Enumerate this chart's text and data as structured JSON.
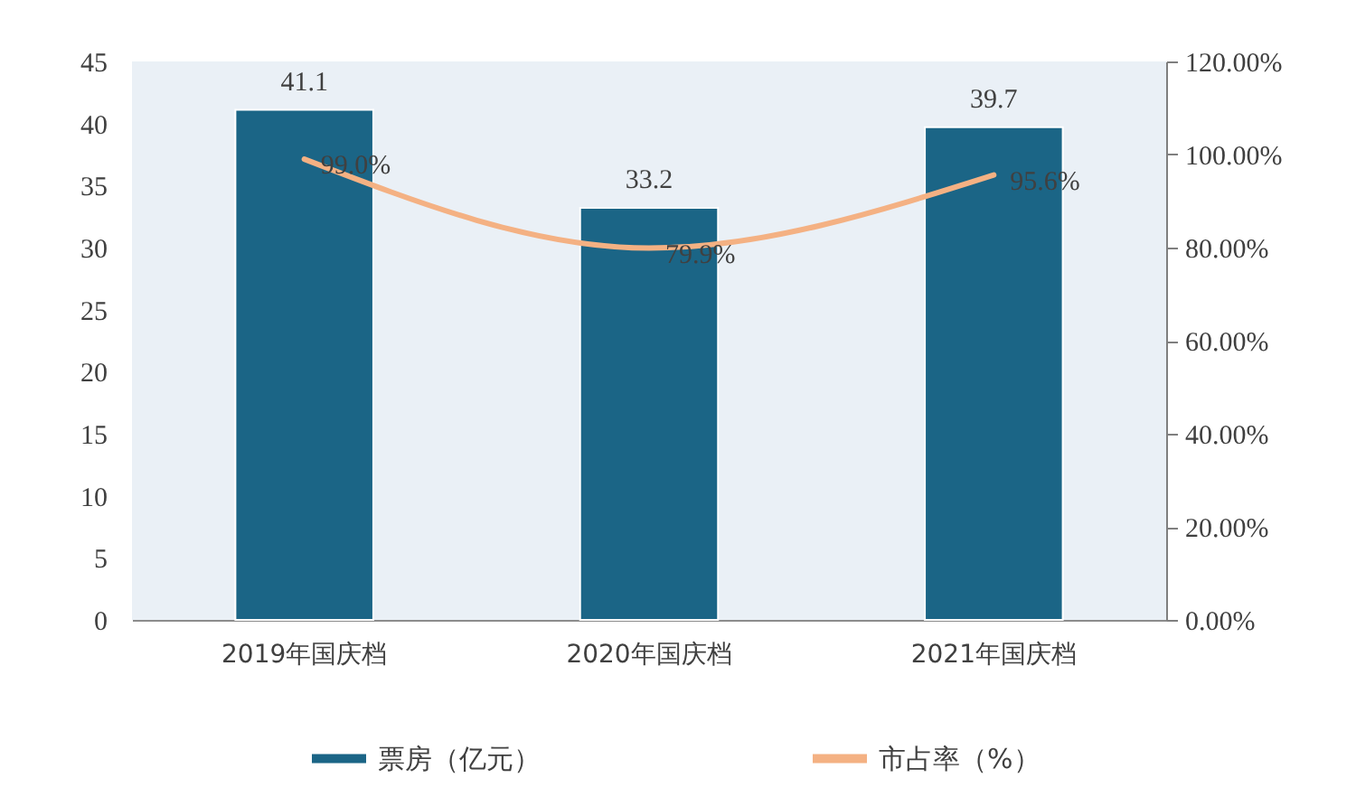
{
  "chart_data": {
    "type": "bar",
    "categories": [
      "2019年国庆档",
      "2020年国庆档",
      "2021年国庆档"
    ],
    "series": [
      {
        "name": "票房（亿元）",
        "color": "#1b6586",
        "values": [
          41.1,
          33.2,
          39.7
        ],
        "value_labels": [
          "41.1",
          "33.2",
          "39.7"
        ]
      },
      {
        "name": "市占率（%）",
        "type": "line",
        "axis": "y2",
        "color": "#f4b183",
        "values": [
          99.0,
          79.9,
          95.6
        ],
        "value_labels": [
          "99.0%",
          "79.9%",
          "95.6%"
        ]
      }
    ],
    "ylim": [
      0,
      45
    ],
    "yticks": [
      0,
      5,
      10,
      15,
      20,
      25,
      30,
      35,
      40,
      45
    ],
    "y2lim": [
      0,
      120
    ],
    "y2ticks": [
      {
        "value": 0,
        "label": "0.00%"
      },
      {
        "value": 20,
        "label": "20.00%"
      },
      {
        "value": 40,
        "label": "40.00%"
      },
      {
        "value": 60,
        "label": "60.00%"
      },
      {
        "value": 80,
        "label": "80.00%"
      },
      {
        "value": 100,
        "label": "100.00%"
      },
      {
        "value": 120,
        "label": "120.00%"
      }
    ],
    "legend": "bottom"
  }
}
